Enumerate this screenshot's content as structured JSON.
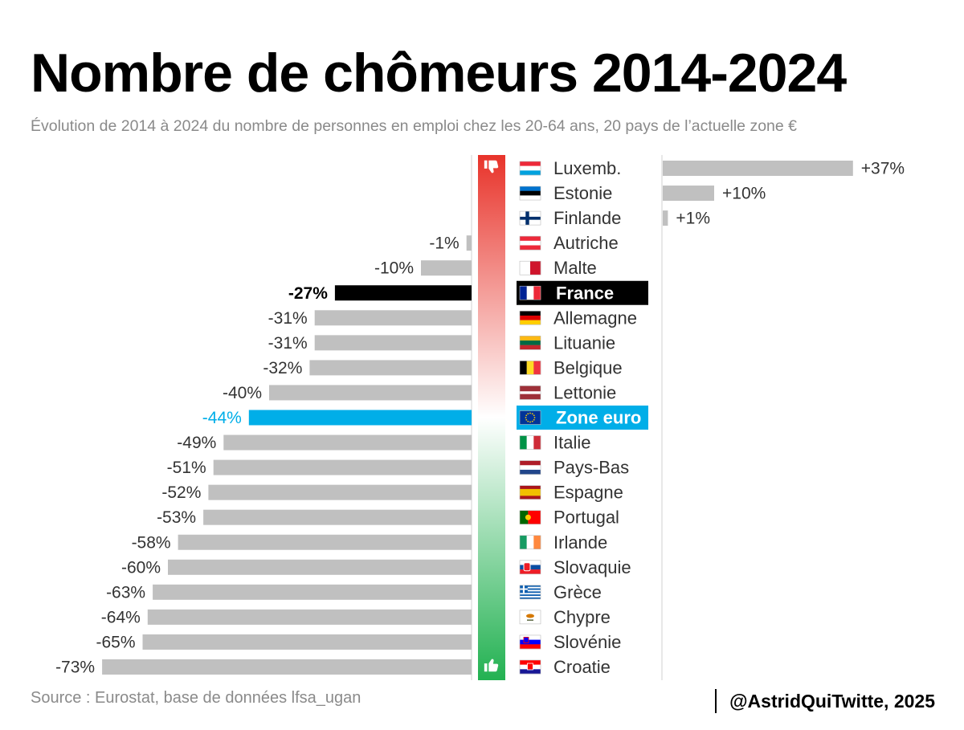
{
  "header": {
    "title": "Nombre de chômeurs 2014-2024",
    "subtitle": "Évolution de 2014 à 2024 du nombre de personnes en emploi chez les 20-64 ans, 20 pays de l’actuelle zone €"
  },
  "footer": {
    "source": "Source : Eurostat, base de données lfsa_ugan",
    "credit": "@AstridQuiTwitte, 2025"
  },
  "icons": {
    "top": "thumbs-down-icon",
    "bottom": "thumbs-up-icon"
  },
  "colors": {
    "bar": "#c0c0c0",
    "france": "#000000",
    "zone_euro": "#00aee8",
    "scale_top": "#e8332a",
    "scale_bottom": "#22b151"
  },
  "chart_data": {
    "type": "bar",
    "orientation": "horizontal",
    "title": "Nombre de chômeurs 2014-2024",
    "unit": "%",
    "categories": [
      "Luxemb.",
      "Estonie",
      "Finlande",
      "Autriche",
      "Malte",
      "France",
      "Allemagne",
      "Lituanie",
      "Belgique",
      "Lettonie",
      "Zone euro",
      "Italie",
      "Pays-Bas",
      "Espagne",
      "Portugal",
      "Irlande",
      "Slovaquie",
      "Grèce",
      "Chypre",
      "Slovénie",
      "Croatie"
    ],
    "values": [
      37,
      10,
      1,
      -1,
      -10,
      -27,
      -31,
      -31,
      -32,
      -40,
      -44,
      -49,
      -51,
      -52,
      -53,
      -58,
      -60,
      -63,
      -64,
      -65,
      -73
    ],
    "value_labels": [
      "+37%",
      "+10%",
      "+1%",
      "-1%",
      "-10%",
      "-27%",
      "-31%",
      "-31%",
      "-32%",
      "-40%",
      "-44%",
      "-49%",
      "-51%",
      "-52%",
      "-53%",
      "-58%",
      "-60%",
      "-63%",
      "-64%",
      "-65%",
      "-73%"
    ],
    "highlighted": {
      "France": "#000000",
      "Zone euro": "#00aee8"
    },
    "flags": [
      "luxembourg",
      "estonia",
      "finland",
      "austria",
      "malta",
      "france",
      "germany",
      "lithuania",
      "belgium",
      "latvia",
      "eu",
      "italy",
      "netherlands",
      "spain",
      "portugal",
      "ireland",
      "slovakia",
      "greece",
      "cyprus",
      "slovenia",
      "croatia"
    ]
  }
}
